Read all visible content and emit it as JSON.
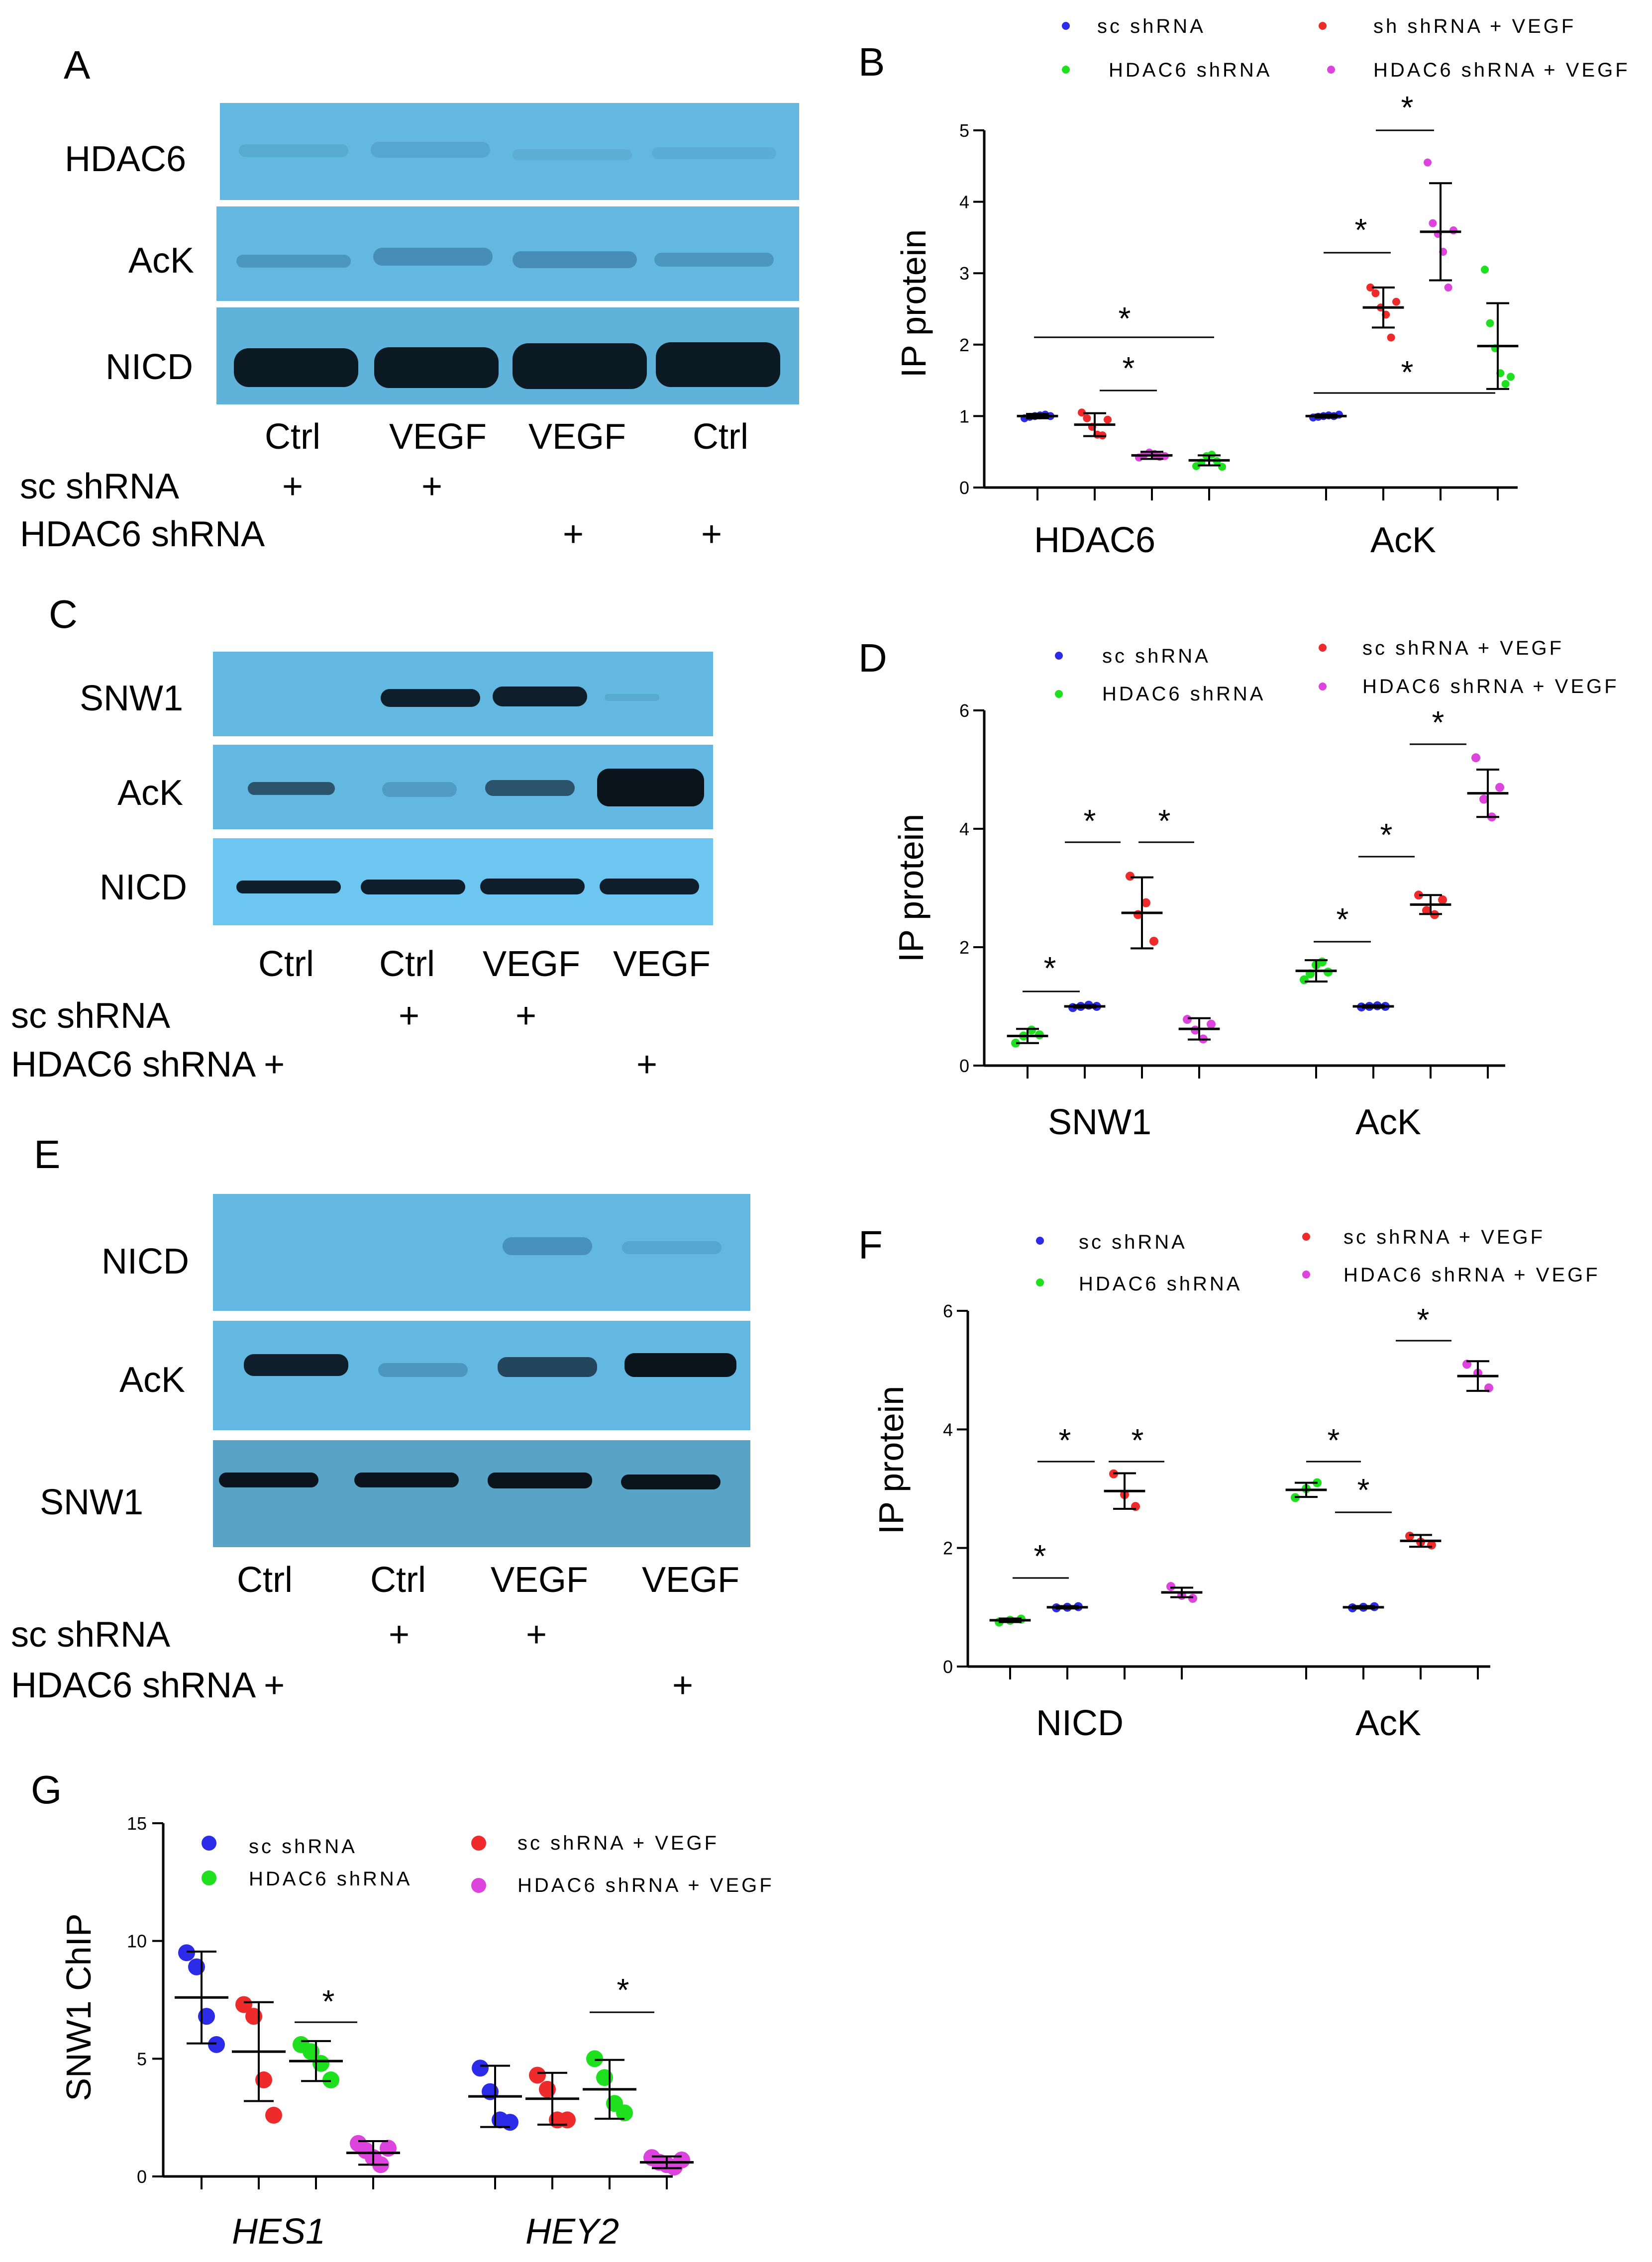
{
  "colors": {
    "sc_shrna": "#2b2be8",
    "sh_vegf": "#ee2a2a",
    "hdac6_shrna": "#1ee01e",
    "hdac6_vegf": "#dd44dd",
    "blot_bg": "#62b8e0",
    "blot_bg_dark": "#58a3c6"
  },
  "panels": {
    "A": {
      "letter": "A",
      "rows": [
        "HDAC6",
        "AcK",
        "NICD"
      ],
      "lanes": [
        "Ctrl",
        "VEGF",
        "VEGF",
        "Ctrl"
      ],
      "conditions": [
        {
          "label": "sc shRNA",
          "marks": [
            "+",
            "+",
            "",
            ""
          ]
        },
        {
          "label": "HDAC6 shRNA",
          "marks": [
            "",
            "",
            "+",
            "+"
          ]
        }
      ]
    },
    "C": {
      "letter": "C",
      "rows": [
        "SNW1",
        "AcK",
        "NICD"
      ],
      "lanes": [
        "Ctrl",
        "Ctrl",
        "VEGF",
        "VEGF"
      ],
      "conditions": [
        {
          "label": "sc shRNA",
          "marks": [
            "",
            "+",
            "+",
            ""
          ]
        },
        {
          "label": "HDAC6 shRNA +",
          "marks": [
            "",
            "",
            "",
            "+"
          ]
        }
      ]
    },
    "E": {
      "letter": "E",
      "rows": [
        "NICD",
        "AcK",
        "SNW1"
      ],
      "lanes": [
        "Ctrl",
        "Ctrl",
        "VEGF",
        "VEGF"
      ],
      "conditions": [
        {
          "label": "sc shRNA",
          "marks": [
            "",
            "+",
            "+",
            ""
          ]
        },
        {
          "label": "HDAC6 shRNA +",
          "marks": [
            "",
            "",
            "",
            "+"
          ]
        }
      ]
    }
  },
  "chart_data": [
    {
      "panel": "B",
      "type": "scatter",
      "ylabel": "IP protein",
      "ylim": [
        0,
        5
      ],
      "yticks": [
        0,
        1,
        2,
        3,
        4,
        5
      ],
      "categories": [
        "HDAC6",
        "AcK"
      ],
      "legend": [
        "sc shRNA",
        "sh shRNA + VEGF",
        "HDAC6 shRNA",
        "HDAC6 shRNA + VEGF"
      ],
      "series": [
        {
          "name": "sc shRNA",
          "color": "#2b2be8",
          "groups": [
            {
              "mean": 1.0,
              "sd": 0.03,
              "points": [
                0.97,
                0.99,
                1.0,
                1.01,
                1.02,
                1.0
              ]
            },
            {
              "mean": 1.0,
              "sd": 0.02,
              "points": [
                0.98,
                0.99,
                1.0,
                1.01,
                1.0,
                1.02
              ]
            }
          ]
        },
        {
          "name": "sh shRNA + VEGF",
          "color": "#ee2a2a",
          "groups": [
            {
              "mean": 0.88,
              "sd": 0.16,
              "points": [
                1.05,
                0.97,
                0.85,
                0.74,
                0.73,
                0.95
              ]
            },
            {
              "mean": 2.52,
              "sd": 0.28,
              "points": [
                2.8,
                2.72,
                2.52,
                2.42,
                2.1,
                2.6
              ]
            }
          ]
        },
        {
          "name": "HDAC6 shRNA + VEGF",
          "color": "#dd44dd",
          "groups": [
            {
              "mean": 0.45,
              "sd": 0.05,
              "points": [
                0.42,
                0.46,
                0.49,
                0.47,
                0.43,
                0.44
              ]
            },
            {
              "mean": 3.58,
              "sd": 0.68,
              "points": [
                4.55,
                3.7,
                3.55,
                3.3,
                2.8,
                3.6
              ]
            }
          ]
        },
        {
          "name": "HDAC6 shRNA",
          "color": "#1ee01e",
          "groups": [
            {
              "mean": 0.38,
              "sd": 0.07,
              "points": [
                0.3,
                0.35,
                0.44,
                0.46,
                0.37,
                0.29
              ]
            },
            {
              "mean": 1.98,
              "sd": 0.6,
              "points": [
                3.05,
                2.3,
                1.95,
                1.6,
                1.45,
                1.55
              ]
            }
          ]
        }
      ],
      "significance": [
        "*",
        "*",
        "*",
        "*",
        "*"
      ]
    },
    {
      "panel": "D",
      "type": "scatter",
      "ylabel": "IP protein",
      "ylim": [
        0,
        6
      ],
      "yticks": [
        0,
        2,
        4,
        6
      ],
      "categories": [
        "SNW1",
        "AcK"
      ],
      "legend": [
        "sc shRNA",
        "sc shRNA + VEGF",
        "HDAC6 shRNA",
        "HDAC6 shRNA + VEGF"
      ],
      "series": [
        {
          "name": "HDAC6 shRNA",
          "color": "#1ee01e",
          "groups": [
            {
              "mean": 0.5,
              "sd": 0.12,
              "points": [
                0.38,
                0.5,
                0.6,
                0.52
              ]
            },
            {
              "mean": 1.6,
              "sd": 0.18,
              "points": [
                1.45,
                1.55,
                1.7,
                1.75,
                1.58
              ]
            }
          ]
        },
        {
          "name": "sc shRNA",
          "color": "#2b2be8",
          "groups": [
            {
              "mean": 1.0,
              "sd": 0.02,
              "points": [
                0.98,
                1.0,
                1.02,
                1.0
              ]
            },
            {
              "mean": 1.0,
              "sd": 0.02,
              "points": [
                0.99,
                1.0,
                1.01,
                1.0
              ]
            }
          ]
        },
        {
          "name": "sc shRNA + VEGF",
          "color": "#ee2a2a",
          "groups": [
            {
              "mean": 2.58,
              "sd": 0.6,
              "points": [
                3.2,
                2.55,
                2.75,
                2.1
              ]
            },
            {
              "mean": 2.72,
              "sd": 0.16,
              "points": [
                2.88,
                2.62,
                2.55,
                2.8
              ]
            }
          ]
        },
        {
          "name": "HDAC6 shRNA + VEGF",
          "color": "#dd44dd",
          "groups": [
            {
              "mean": 0.62,
              "sd": 0.18,
              "points": [
                0.78,
                0.6,
                0.45,
                0.7
              ]
            },
            {
              "mean": 4.6,
              "sd": 0.4,
              "points": [
                5.2,
                4.5,
                4.2,
                4.7
              ]
            }
          ]
        }
      ],
      "significance": [
        "*",
        "*",
        "*",
        "*",
        "*",
        "*"
      ]
    },
    {
      "panel": "F",
      "type": "scatter",
      "ylabel": "IP protein",
      "ylim": [
        0,
        6
      ],
      "yticks": [
        0,
        2,
        4,
        6
      ],
      "categories": [
        "NICD",
        "AcK"
      ],
      "legend": [
        "sc shRNA",
        "sc shRNA + VEGF",
        "HDAC6 shRNA",
        "HDAC6 shRNA + VEGF"
      ],
      "series": [
        {
          "name": "HDAC6 shRNA",
          "color": "#1ee01e",
          "groups": [
            {
              "mean": 0.78,
              "sd": 0.03,
              "points": [
                0.75,
                0.78,
                0.8
              ]
            },
            {
              "mean": 2.98,
              "sd": 0.12,
              "points": [
                2.85,
                3.0,
                3.1
              ]
            }
          ]
        },
        {
          "name": "sc shRNA",
          "color": "#2b2be8",
          "groups": [
            {
              "mean": 1.0,
              "sd": 0.02,
              "points": [
                0.99,
                1.0,
                1.01
              ]
            },
            {
              "mean": 1.0,
              "sd": 0.02,
              "points": [
                0.99,
                1.0,
                1.01
              ]
            }
          ]
        },
        {
          "name": "sc shRNA + VEGF",
          "color": "#ee2a2a",
          "groups": [
            {
              "mean": 2.96,
              "sd": 0.3,
              "points": [
                3.25,
                2.9,
                2.7
              ]
            },
            {
              "mean": 2.12,
              "sd": 0.1,
              "points": [
                2.2,
                2.1,
                2.05
              ]
            }
          ]
        },
        {
          "name": "HDAC6 shRNA + VEGF",
          "color": "#dd44dd",
          "groups": [
            {
              "mean": 1.25,
              "sd": 0.08,
              "points": [
                1.35,
                1.2,
                1.15
              ]
            },
            {
              "mean": 4.9,
              "sd": 0.25,
              "points": [
                5.1,
                4.95,
                4.7
              ]
            }
          ]
        }
      ],
      "significance": [
        "*",
        "*",
        "*",
        "*",
        "*",
        "*"
      ]
    },
    {
      "panel": "G",
      "type": "scatter",
      "ylabel": "SNW1 ChIP",
      "ylim": [
        0,
        15
      ],
      "yticks": [
        0,
        5,
        10,
        15
      ],
      "categories": [
        "HES1",
        "HEY2"
      ],
      "legend": [
        "sc shRNA",
        "sc shRNA + VEGF",
        "HDAC6 shRNA",
        "HDAC6 shRNA + VEGF"
      ],
      "series": [
        {
          "name": "sc shRNA",
          "color": "#2b2be8",
          "groups": [
            {
              "mean": 7.6,
              "sd": 1.95,
              "points": [
                9.5,
                8.9,
                6.8,
                5.6
              ]
            },
            {
              "mean": 3.4,
              "sd": 1.3,
              "points": [
                4.6,
                3.6,
                2.4,
                2.3
              ]
            }
          ]
        },
        {
          "name": "sc shRNA + VEGF",
          "color": "#ee2a2a",
          "groups": [
            {
              "mean": 5.3,
              "sd": 2.1,
              "points": [
                7.3,
                6.8,
                4.1,
                2.6
              ]
            },
            {
              "mean": 3.3,
              "sd": 1.1,
              "points": [
                4.3,
                3.7,
                2.4,
                2.4
              ]
            }
          ]
        },
        {
          "name": "HDAC6 shRNA",
          "color": "#1ee01e",
          "groups": [
            {
              "mean": 4.9,
              "sd": 0.85,
              "points": [
                5.6,
                5.3,
                4.8,
                4.1
              ]
            },
            {
              "mean": 3.7,
              "sd": 1.25,
              "points": [
                5.0,
                4.2,
                3.1,
                2.7
              ]
            }
          ]
        },
        {
          "name": "HDAC6 shRNA + VEGF",
          "color": "#dd44dd",
          "groups": [
            {
              "mean": 1.0,
              "sd": 0.5,
              "points": [
                1.4,
                1.1,
                0.8,
                0.5,
                1.2
              ]
            },
            {
              "mean": 0.6,
              "sd": 0.25,
              "points": [
                0.8,
                0.6,
                0.5,
                0.4,
                0.7
              ]
            }
          ]
        }
      ],
      "significance": [
        "*",
        "*"
      ]
    }
  ]
}
